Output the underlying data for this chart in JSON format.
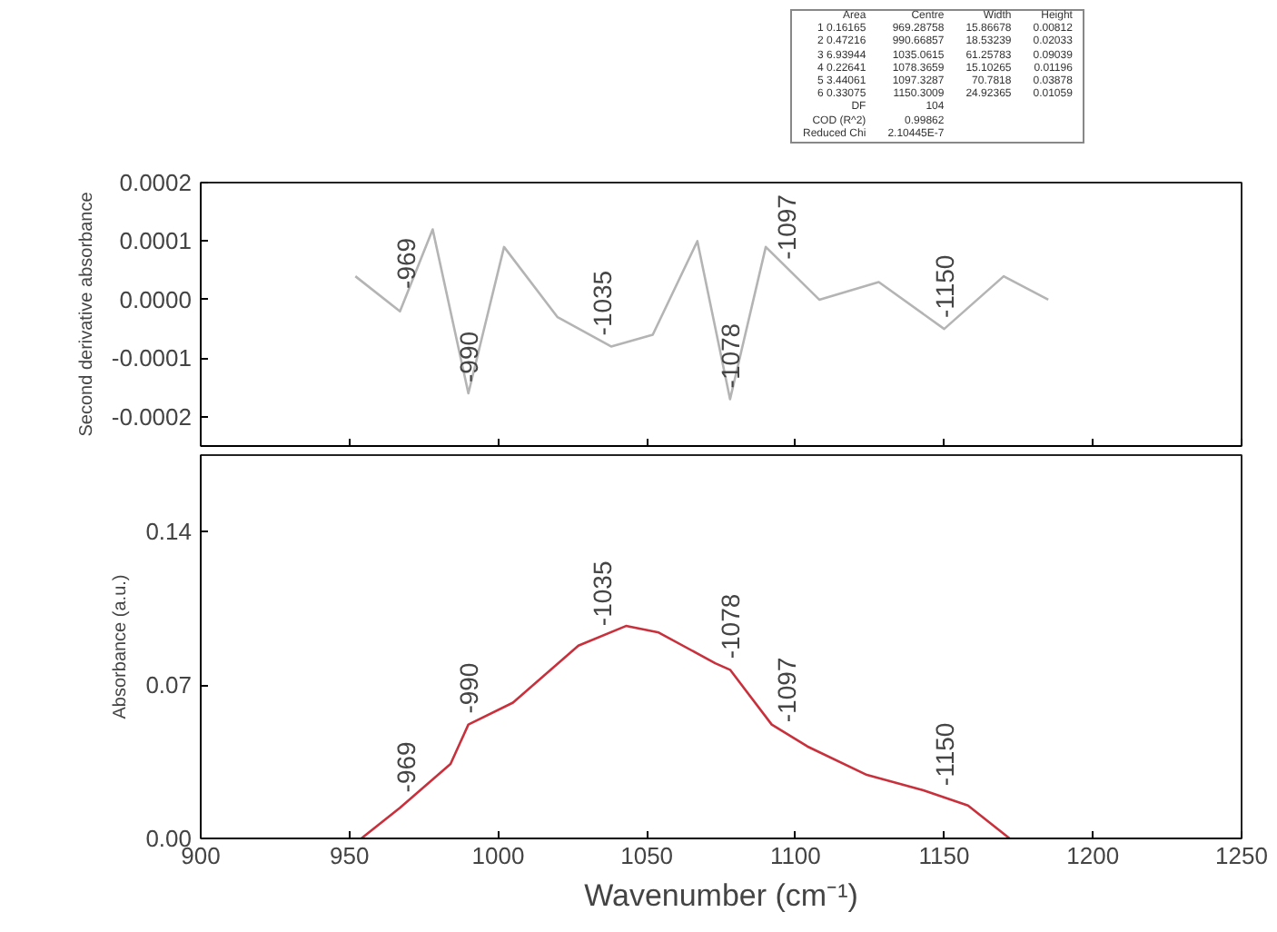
{
  "chart_data": [
    {
      "type": "other",
      "annotations": [
        "Area\tCentre\tWidth\tHeight",
        "1 0.16165\t969.28758\t15.86678\t0.00812",
        "2 0.47216\t990.66857\t18.53239\t0.02033",
        "3 6.93944\t1035.0615\t61.25783\t0.09039",
        "4 0.22641\t1078.3659\t15.10265\t0.01196",
        "5 3.44061\t1097.3287\t70.7818\t0.03878",
        "6 0.33075\t1150.3009\t24.92365\t0.01059",
        "DF\t104",
        "COD (R^2)\t0.99862",
        "Reduced Chi\t2.10445E-7"
      ]
    },
    {
      "type": "line",
      "ylabel": "Second derivative absorbance",
      "tick_labels": "y",
      "grid": false,
      "x": [
        952,
        967,
        978,
        990,
        1002,
        1020,
        1038,
        1052,
        1067,
        1078,
        1090,
        1108,
        1128,
        1150,
        1170,
        1185
      ],
      "series": [
        {
          "color": "#b4b4b4",
          "values": [
            4e-05,
            -2e-05,
            0.00012,
            -0.00016,
            9e-05,
            -3e-05,
            -8e-05,
            -6e-05,
            0.0001,
            -0.00017,
            9e-05,
            0.0,
            3e-05,
            -5e-05,
            4e-05,
            0.0
          ]
        }
      ],
      "xlim": [
        900,
        1250
      ],
      "xticks": [
        900,
        950,
        1000,
        1050,
        1100,
        1150,
        1200,
        1250
      ],
      "ylim": [
        -0.00025,
        0.0002
      ],
      "yticks": [
        {
          "value": -0.0002,
          "label": "-0.0002"
        },
        {
          "value": -0.0001,
          "label": "-0.0001"
        },
        {
          "value": 0,
          "label": "0.0000"
        },
        {
          "value": 0.0001,
          "label": "0.0001"
        },
        {
          "value": 0.0002,
          "label": "0.0002"
        }
      ],
      "annotations": [
        {
          "text": "-969",
          "x": 969,
          "y": 0.0
        },
        {
          "text": "-990",
          "x": 990,
          "y": -0.00016
        },
        {
          "text": "-1035",
          "x": 1035,
          "y": -8e-05
        },
        {
          "text": "-1078",
          "x": 1078,
          "y": -0.00017
        },
        {
          "text": "-1097",
          "x": 1097,
          "y": 5e-05
        },
        {
          "text": "-1150",
          "x": 1150,
          "y": -5e-05
        }
      ]
    },
    {
      "type": "line",
      "xlabel": "Wavenumber (cm⁻¹)",
      "ylabel": "Absorbance (a.u.)",
      "grid": false,
      "x": [
        954,
        967,
        984,
        990,
        1005,
        1027,
        1043,
        1054,
        1073,
        1078,
        1092,
        1104,
        1124,
        1143,
        1158,
        1172
      ],
      "series": [
        {
          "color": "#c8303c",
          "values": [
            0.0,
            0.014,
            0.034,
            0.052,
            0.062,
            0.088,
            0.097,
            0.094,
            0.08,
            0.077,
            0.052,
            0.042,
            0.029,
            0.022,
            0.015,
            0.0
          ]
        }
      ],
      "xlim": [
        900,
        1250
      ],
      "xticks": [
        900,
        950,
        1000,
        1050,
        1100,
        1150,
        1200,
        1250
      ],
      "ylim": [
        0,
        0.175
      ],
      "yticks": [
        {
          "value": 0,
          "label": "0.00"
        },
        {
          "value": 0.07,
          "label": "0.07"
        },
        0.14
      ],
      "annotations": [
        {
          "text": "-969",
          "x": 969,
          "y": 0.016
        },
        {
          "text": "-990",
          "x": 990,
          "y": 0.052
        },
        {
          "text": "-1035",
          "x": 1035,
          "y": 0.092
        },
        {
          "text": "-1078",
          "x": 1078,
          "y": 0.077
        },
        {
          "text": "-1097",
          "x": 1097,
          "y": 0.048
        },
        {
          "text": "-1150",
          "x": 1150,
          "y": 0.019
        }
      ]
    }
  ]
}
